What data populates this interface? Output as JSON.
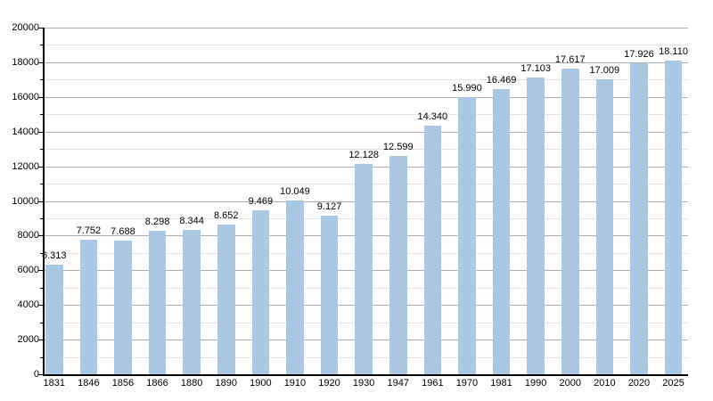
{
  "chart_data": {
    "type": "bar",
    "title": "",
    "xlabel": "",
    "ylabel": "",
    "categories": [
      "1831",
      "1846",
      "1856",
      "1866",
      "1880",
      "1890",
      "1900",
      "1910",
      "1920",
      "1930",
      "1947",
      "1961",
      "1970",
      "1981",
      "1990",
      "2000",
      "2010",
      "2020",
      "2025"
    ],
    "values": [
      6313,
      7752,
      7688,
      8298,
      8344,
      8652,
      9469,
      10049,
      9127,
      12128,
      12599,
      14340,
      15990,
      16469,
      17103,
      17617,
      17009,
      17926,
      18110
    ],
    "value_labels": [
      "6.313",
      "7.752",
      "7.688",
      "8.298",
      "8.344",
      "8.652",
      "9.469",
      "10.049",
      "9.127",
      "12.128",
      "12.599",
      "14.340",
      "15.990",
      "16.469",
      "17.103",
      "17.617",
      "17.009",
      "17.926",
      "18.110"
    ],
    "ylim": [
      0,
      20000
    ],
    "y_major_step": 2000,
    "y_minor_step": 1000,
    "y_tick_labels": [
      "0",
      "2000",
      "4000",
      "6000",
      "8000",
      "10000",
      "12000",
      "14000",
      "16000",
      "18000",
      "20000"
    ],
    "grid": "on",
    "legend": "none",
    "colors": {
      "bar": "#aac7e4",
      "major_grid": "#adadad",
      "minor_grid": "#e4e4e4",
      "axis": "#000000",
      "text": "#000000",
      "background": "#ffffff"
    }
  }
}
